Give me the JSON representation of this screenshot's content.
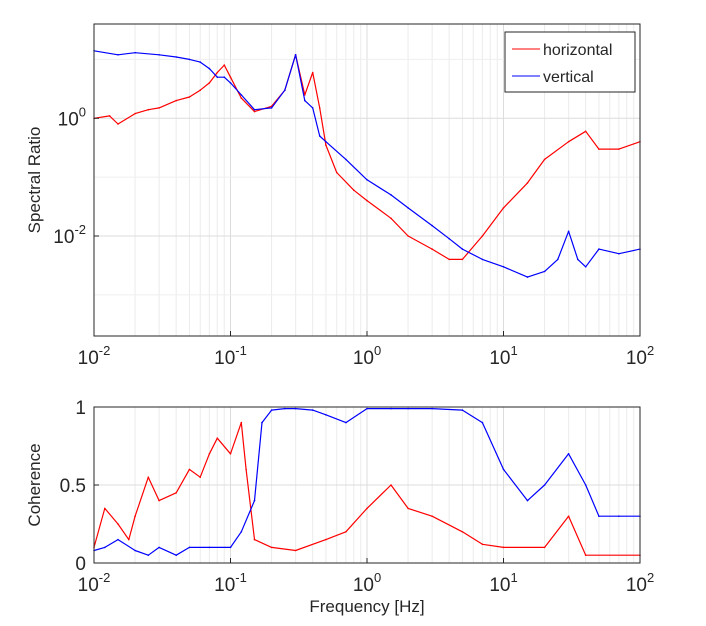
{
  "chart_data": [
    {
      "type": "line",
      "ylabel": "Spectral Ratio",
      "xlabel": "",
      "xscale": "log",
      "yscale": "log",
      "xlim": [
        0.01,
        100
      ],
      "ylim": [
        0.0002,
        40
      ],
      "grid": true,
      "legend": {
        "placement": "top-right"
      },
      "xticks": [
        {
          "base": "10",
          "exp": "-2"
        },
        {
          "base": "10",
          "exp": "-1"
        },
        {
          "base": "10",
          "exp": "0"
        },
        {
          "base": "10",
          "exp": "1"
        },
        {
          "base": "10",
          "exp": "2"
        }
      ],
      "yticks": [
        {
          "value": 1,
          "base": "10",
          "exp": "0"
        },
        {
          "value": 0.01,
          "base": "10",
          "exp": "-2"
        }
      ],
      "series": [
        {
          "name": "horizontal",
          "color": "#ff0000",
          "x": [
            0.01,
            0.013,
            0.015,
            0.02,
            0.025,
            0.03,
            0.04,
            0.05,
            0.06,
            0.07,
            0.08,
            0.09,
            0.1,
            0.12,
            0.15,
            0.2,
            0.25,
            0.3,
            0.35,
            0.4,
            0.45,
            0.5,
            0.6,
            0.8,
            1,
            1.5,
            2,
            3,
            4,
            5,
            7,
            10,
            15,
            20,
            30,
            40,
            50,
            70,
            100
          ],
          "y": [
            1.0,
            1.1,
            0.8,
            1.2,
            1.4,
            1.5,
            2.0,
            2.3,
            3.0,
            4.0,
            6.0,
            8.0,
            5.0,
            2.2,
            1.3,
            1.6,
            3.0,
            12,
            2.5,
            6,
            1.5,
            0.35,
            0.12,
            0.06,
            0.04,
            0.02,
            0.01,
            0.006,
            0.004,
            0.004,
            0.01,
            0.03,
            0.08,
            0.2,
            0.4,
            0.6,
            0.3,
            0.3,
            0.4
          ]
        },
        {
          "name": "vertical",
          "color": "#0000ff",
          "x": [
            0.01,
            0.015,
            0.02,
            0.03,
            0.04,
            0.05,
            0.06,
            0.07,
            0.08,
            0.09,
            0.1,
            0.12,
            0.15,
            0.2,
            0.25,
            0.3,
            0.35,
            0.4,
            0.45,
            0.5,
            0.7,
            1,
            1.5,
            2,
            3,
            4,
            5,
            7,
            10,
            15,
            20,
            25,
            30,
            35,
            40,
            50,
            70,
            100
          ],
          "y": [
            14,
            12,
            13,
            12,
            11,
            10,
            9,
            7,
            5,
            5,
            4,
            2.5,
            1.4,
            1.5,
            3,
            12,
            2,
            1.5,
            0.5,
            0.4,
            0.2,
            0.09,
            0.05,
            0.03,
            0.015,
            0.009,
            0.006,
            0.004,
            0.003,
            0.002,
            0.0025,
            0.004,
            0.012,
            0.004,
            0.003,
            0.006,
            0.005,
            0.006
          ]
        }
      ]
    },
    {
      "type": "line",
      "ylabel": "Coherence",
      "xlabel": "Frequency [Hz]",
      "xscale": "log",
      "xlim": [
        0.01,
        100
      ],
      "ylim": [
        0,
        1
      ],
      "grid": true,
      "xticks": [
        {
          "base": "10",
          "exp": "-2"
        },
        {
          "base": "10",
          "exp": "-1"
        },
        {
          "base": "10",
          "exp": "0"
        },
        {
          "base": "10",
          "exp": "1"
        },
        {
          "base": "10",
          "exp": "2"
        }
      ],
      "yticks": [
        {
          "value": 0,
          "label": "0"
        },
        {
          "value": 0.5,
          "label": "0.5"
        },
        {
          "value": 1,
          "label": "1"
        }
      ],
      "series": [
        {
          "name": "horizontal",
          "color": "#ff0000",
          "x": [
            0.01,
            0.012,
            0.015,
            0.018,
            0.02,
            0.025,
            0.03,
            0.04,
            0.05,
            0.06,
            0.07,
            0.08,
            0.1,
            0.12,
            0.13,
            0.15,
            0.2,
            0.3,
            0.5,
            0.7,
            1,
            1.5,
            2,
            3,
            5,
            7,
            10,
            20,
            30,
            40,
            100
          ],
          "y": [
            0.1,
            0.35,
            0.25,
            0.15,
            0.3,
            0.55,
            0.4,
            0.45,
            0.6,
            0.55,
            0.7,
            0.8,
            0.7,
            0.9,
            0.6,
            0.15,
            0.1,
            0.08,
            0.15,
            0.2,
            0.35,
            0.5,
            0.35,
            0.3,
            0.2,
            0.12,
            0.1,
            0.1,
            0.3,
            0.05,
            0.05
          ]
        },
        {
          "name": "vertical",
          "color": "#0000ff",
          "x": [
            0.01,
            0.012,
            0.015,
            0.02,
            0.025,
            0.03,
            0.04,
            0.05,
            0.07,
            0.1,
            0.12,
            0.15,
            0.17,
            0.2,
            0.25,
            0.3,
            0.4,
            0.5,
            0.7,
            1,
            1.5,
            2,
            3,
            5,
            7,
            10,
            15,
            20,
            30,
            40,
            50,
            70,
            100
          ],
          "y": [
            0.08,
            0.1,
            0.15,
            0.08,
            0.05,
            0.1,
            0.05,
            0.1,
            0.1,
            0.1,
            0.2,
            0.4,
            0.9,
            0.98,
            0.99,
            0.99,
            0.98,
            0.95,
            0.9,
            0.99,
            0.99,
            0.99,
            0.99,
            0.98,
            0.9,
            0.6,
            0.4,
            0.5,
            0.7,
            0.5,
            0.3,
            0.3,
            0.3
          ]
        }
      ]
    }
  ]
}
